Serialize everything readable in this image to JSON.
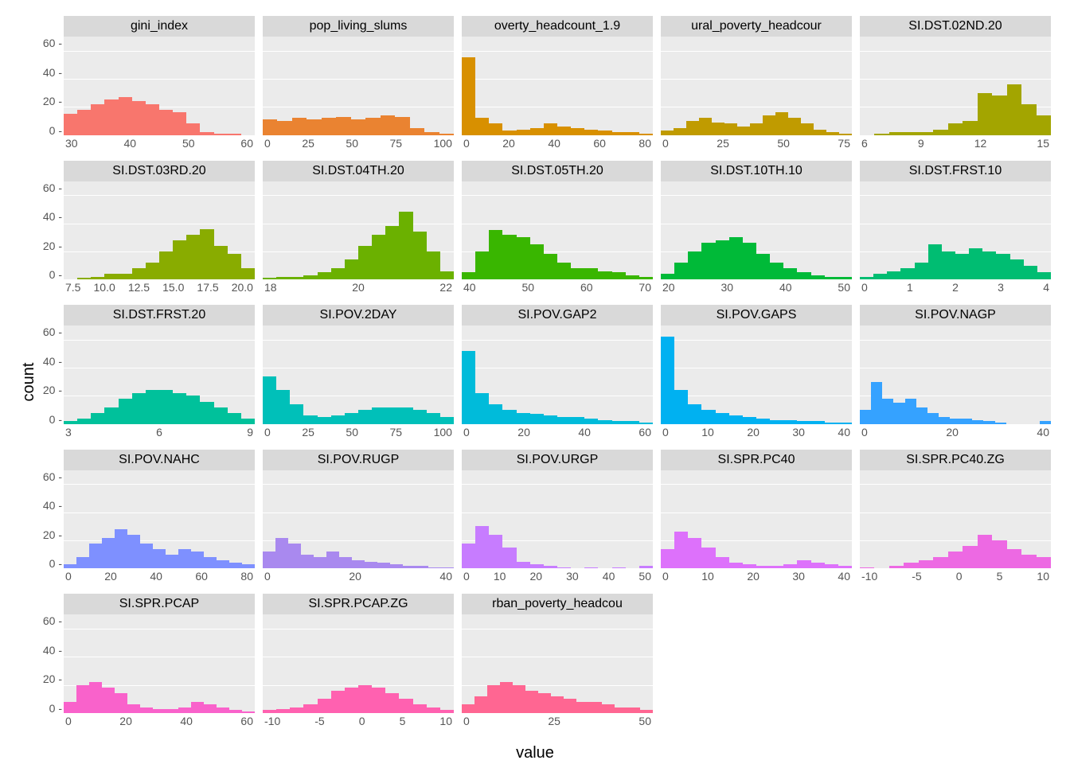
{
  "axis_labels": {
    "y": "count",
    "x": "value"
  },
  "ymax": 70,
  "ytick_step": 20,
  "yticks": [
    "60",
    "40",
    "20",
    "0"
  ],
  "background_color": "#ebebeb",
  "strip_bg": "#d9d9d9",
  "grid_color": "#ffffff",
  "panels": [
    {
      "title": "gini_index",
      "color": "#f8766d",
      "xticks": [
        "30",
        "40",
        "50",
        "60"
      ],
      "data": [
        15,
        18,
        22,
        25,
        27,
        24,
        22,
        18,
        16,
        8,
        2,
        1,
        1,
        0
      ]
    },
    {
      "title": "pop_living_slums",
      "color": "#ea8331",
      "xticks": [
        "0",
        "25",
        "50",
        "75",
        "100"
      ],
      "data": [
        11,
        10,
        12,
        11,
        12,
        13,
        11,
        12,
        14,
        13,
        5,
        2,
        1
      ]
    },
    {
      "title": "overty_headcount_1.9",
      "color": "#d89000",
      "xticks": [
        "0",
        "20",
        "40",
        "60",
        "80"
      ],
      "data": [
        55,
        12,
        8,
        3,
        4,
        5,
        8,
        6,
        5,
        4,
        3,
        2,
        2,
        1
      ]
    },
    {
      "title": "ural_poverty_headcour",
      "color": "#c09b00",
      "xticks": [
        "0",
        "25",
        "50",
        "75"
      ],
      "data": [
        3,
        5,
        10,
        12,
        9,
        8,
        6,
        8,
        14,
        16,
        12,
        8,
        4,
        2,
        1
      ]
    },
    {
      "title": "SI.DST.02ND.20",
      "color": "#a3a500",
      "xticks": [
        "6",
        "9",
        "12",
        "15"
      ],
      "data": [
        0,
        1,
        2,
        2,
        2,
        4,
        8,
        10,
        30,
        28,
        36,
        22,
        14
      ]
    },
    {
      "title": "SI.DST.03RD.20",
      "color": "#89ac00",
      "xticks": [
        "7.5",
        "10.0",
        "12.5",
        "15.0",
        "17.5",
        "20.0"
      ],
      "data": [
        0,
        1,
        2,
        4,
        4,
        8,
        12,
        20,
        28,
        32,
        36,
        24,
        18,
        8
      ]
    },
    {
      "title": "SI.DST.04TH.20",
      "color": "#6bb100",
      "xticks": [
        "18",
        "20",
        "22"
      ],
      "data": [
        1,
        2,
        2,
        3,
        5,
        8,
        14,
        24,
        32,
        38,
        48,
        34,
        20,
        6
      ]
    },
    {
      "title": "SI.DST.05TH.20",
      "color": "#39b600",
      "xticks": [
        "40",
        "50",
        "60",
        "70"
      ],
      "data": [
        5,
        20,
        35,
        32,
        30,
        25,
        18,
        12,
        8,
        8,
        6,
        5,
        3,
        2
      ]
    },
    {
      "title": "SI.DST.10TH.10",
      "color": "#00ba38",
      "xticks": [
        "20",
        "30",
        "40",
        "50"
      ],
      "data": [
        4,
        12,
        20,
        26,
        28,
        30,
        26,
        18,
        12,
        8,
        5,
        3,
        2,
        2
      ]
    },
    {
      "title": "SI.DST.FRST.10",
      "color": "#00bd72",
      "xticks": [
        "0",
        "1",
        "2",
        "3",
        "4"
      ],
      "data": [
        2,
        4,
        6,
        8,
        12,
        25,
        20,
        18,
        22,
        20,
        18,
        14,
        10,
        5
      ]
    },
    {
      "title": "SI.DST.FRST.20",
      "color": "#00c19b",
      "xticks": [
        "3",
        "6",
        "9"
      ],
      "data": [
        2,
        4,
        8,
        12,
        18,
        22,
        24,
        24,
        22,
        20,
        16,
        12,
        8,
        4
      ]
    },
    {
      "title": "SI.POV.2DAY",
      "color": "#00c0b9",
      "xticks": [
        "0",
        "25",
        "50",
        "75",
        "100"
      ],
      "data": [
        34,
        24,
        14,
        6,
        5,
        6,
        8,
        10,
        12,
        12,
        12,
        10,
        8,
        5
      ]
    },
    {
      "title": "SI.POV.GAP2",
      "color": "#00bbda",
      "xticks": [
        "0",
        "20",
        "40",
        "60"
      ],
      "data": [
        52,
        22,
        14,
        10,
        8,
        7,
        6,
        5,
        5,
        4,
        3,
        2,
        2,
        1
      ]
    },
    {
      "title": "SI.POV.GAPS",
      "color": "#00b1f1",
      "xticks": [
        "0",
        "10",
        "20",
        "30",
        "40"
      ],
      "data": [
        62,
        24,
        14,
        10,
        8,
        6,
        5,
        4,
        3,
        3,
        2,
        2,
        1,
        1
      ]
    },
    {
      "title": "SI.POV.NAGP",
      "color": "#35a2ff",
      "xticks": [
        "0",
        "20",
        "40"
      ],
      "data": [
        10,
        30,
        18,
        15,
        18,
        12,
        8,
        5,
        4,
        4,
        3,
        2,
        1,
        0,
        0,
        0,
        2
      ]
    },
    {
      "title": "SI.POV.NAHC",
      "color": "#7e90ff",
      "xticks": [
        "0",
        "20",
        "40",
        "60",
        "80"
      ],
      "data": [
        3,
        8,
        18,
        22,
        28,
        24,
        18,
        14,
        10,
        14,
        12,
        8,
        6,
        4,
        3
      ]
    },
    {
      "title": "SI.POV.RUGP",
      "color": "#a989ef",
      "xticks": [
        "0",
        "20",
        "40"
      ],
      "data": [
        12,
        22,
        18,
        10,
        8,
        12,
        8,
        6,
        5,
        4,
        3,
        2,
        2,
        1,
        1
      ]
    },
    {
      "title": "SI.POV.URGP",
      "color": "#c77cff",
      "xticks": [
        "0",
        "10",
        "20",
        "30",
        "40",
        "50"
      ],
      "data": [
        18,
        30,
        24,
        15,
        5,
        3,
        2,
        1,
        0,
        1,
        0,
        1,
        0,
        2
      ]
    },
    {
      "title": "SI.SPR.PC40",
      "color": "#dd71fb",
      "xticks": [
        "0",
        "10",
        "20",
        "30",
        "40"
      ],
      "data": [
        14,
        26,
        22,
        15,
        8,
        4,
        3,
        2,
        2,
        3,
        6,
        4,
        3,
        2
      ]
    },
    {
      "title": "SI.SPR.PC40.ZG",
      "color": "#ed69e3",
      "xticks": [
        "-10",
        "-5",
        "0",
        "5",
        "10"
      ],
      "data": [
        1,
        0,
        2,
        4,
        6,
        8,
        12,
        16,
        24,
        20,
        14,
        10,
        8
      ]
    },
    {
      "title": "SI.SPR.PCAP",
      "color": "#f962cb",
      "xticks": [
        "0",
        "20",
        "40",
        "60"
      ],
      "data": [
        8,
        20,
        22,
        18,
        14,
        6,
        4,
        3,
        3,
        4,
        8,
        6,
        4,
        2,
        1
      ]
    },
    {
      "title": "SI.SPR.PCAP.ZG",
      "color": "#ff61b0",
      "xticks": [
        "-10",
        "-5",
        "0",
        "5",
        "10"
      ],
      "data": [
        2,
        3,
        4,
        6,
        10,
        16,
        18,
        20,
        18,
        14,
        10,
        6,
        4,
        2
      ]
    },
    {
      "title": "rban_poverty_headcou",
      "color": "#ff6692",
      "xticks": [
        "0",
        "25",
        "50"
      ],
      "data": [
        6,
        12,
        20,
        22,
        20,
        16,
        14,
        12,
        10,
        8,
        8,
        6,
        4,
        4,
        2
      ]
    }
  ]
}
